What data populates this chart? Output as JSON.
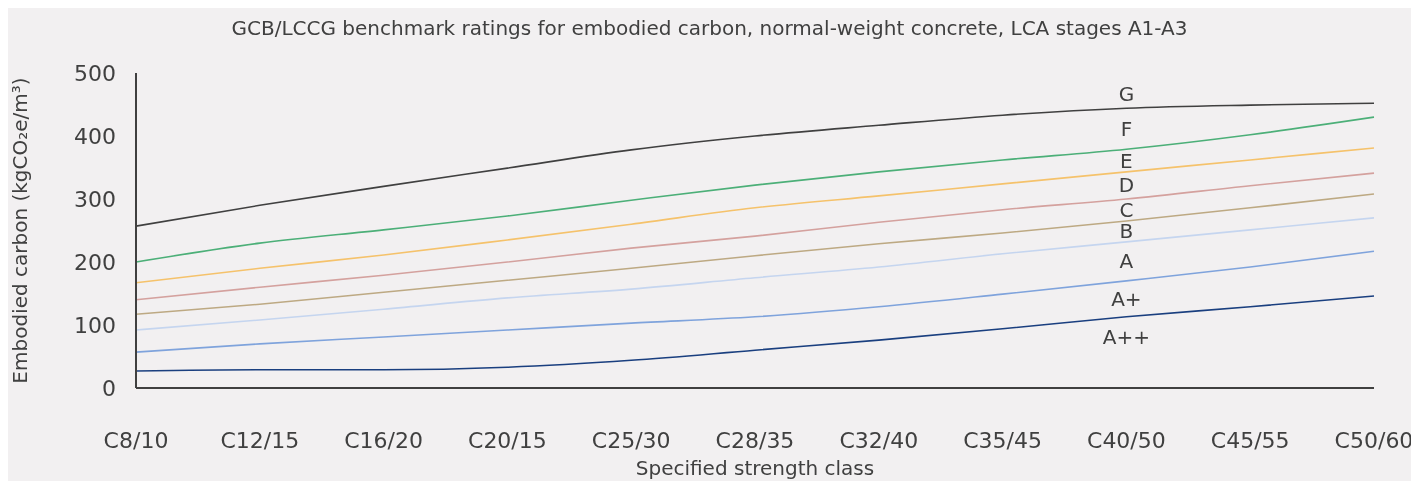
{
  "chart_data": {
    "type": "line",
    "title": "GCB/LCCG benchmark ratings for embodied carbon, normal-weight concrete, LCA stages A1-A3",
    "xlabel": "Specified strength class",
    "ylabel": "Embodied carbon (kgCO₂e/m³)",
    "categories": [
      "C8/10",
      "C12/15",
      "C16/20",
      "C20/15",
      "C25/30",
      "C28/35",
      "C32/40",
      "C35/45",
      "C40/50",
      "C45/55",
      "C50/60"
    ],
    "ylim": [
      0,
      500
    ],
    "yticks": [
      0,
      100,
      200,
      300,
      400,
      500
    ],
    "grid": false,
    "legend": false,
    "marker": "none",
    "line_style": "solid",
    "series": [
      {
        "color": "#404040",
        "values": [
          257,
          290,
          320,
          349,
          378,
          400,
          417,
          433,
          444,
          449,
          452
        ]
      },
      {
        "color": "#4caf78",
        "values": [
          200,
          230,
          251,
          273,
          298,
          322,
          343,
          362,
          379,
          402,
          430
        ]
      },
      {
        "color": "#f5c26b",
        "values": [
          167,
          190,
          211,
          235,
          260,
          286,
          305,
          324,
          343,
          362,
          381
        ]
      },
      {
        "color": "#d4a19e",
        "values": [
          140,
          160,
          179,
          200,
          222,
          241,
          263,
          283,
          300,
          321,
          341
        ]
      },
      {
        "color": "#bda983",
        "values": [
          117,
          133,
          152,
          171,
          190,
          210,
          229,
          246,
          265,
          286,
          308
        ]
      },
      {
        "color": "#c5d5ef",
        "values": [
          92,
          108,
          125,
          143,
          157,
          175,
          192,
          213,
          232,
          251,
          270
        ]
      },
      {
        "color": "#7fa3dc",
        "values": [
          57,
          70,
          81,
          92,
          103,
          113,
          129,
          149,
          170,
          192,
          217
        ]
      },
      {
        "color": "#1a3f7f",
        "values": [
          27,
          29,
          29,
          33,
          44,
          60,
          76,
          94,
          113,
          129,
          146
        ]
      }
    ],
    "annotations": [
      "G",
      "F",
      "E",
      "D",
      "C",
      "B",
      "A",
      "A+",
      "A++"
    ]
  }
}
